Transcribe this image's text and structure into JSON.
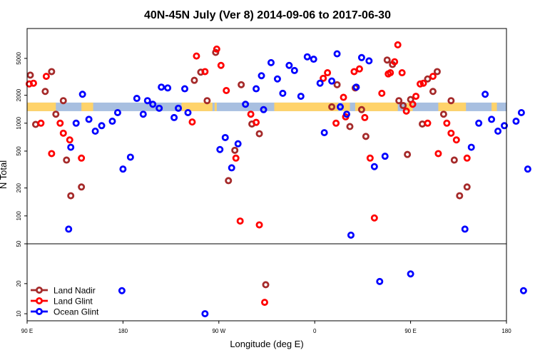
{
  "chart_data": {
    "type": "scatter",
    "title": "40N-45N July (Ver 8)   2014-09-06 to 2017-06-30",
    "xlabel": "Longitude (deg E)",
    "ylabel": "N Total",
    "x_ticks": [
      {
        "value": 90,
        "label": "90 E"
      },
      {
        "value": 180,
        "label": "180"
      },
      {
        "value": 270,
        "label": "90 W"
      },
      {
        "value": 360,
        "label": "0"
      },
      {
        "value": 450,
        "label": "90 E"
      },
      {
        "value": 540,
        "label": "180"
      }
    ],
    "upper_panel": {
      "y_scale": "log",
      "ylim": [
        50,
        10500
      ],
      "y_ticks": [
        {
          "value": 50,
          "label": "50"
        },
        {
          "value": 100,
          "label": "100"
        },
        {
          "value": 200,
          "label": "200"
        },
        {
          "value": 500,
          "label": "500"
        },
        {
          "value": 1000,
          "label": "1000"
        },
        {
          "value": 2000,
          "label": "2000"
        },
        {
          "value": 5000,
          "label": "5000"
        }
      ]
    },
    "lower_panel": {
      "y_scale": "log",
      "ylim": [
        8.5,
        50
      ],
      "y_ticks": [
        {
          "value": 10,
          "label": "10"
        },
        {
          "value": 20,
          "label": "20"
        }
      ]
    },
    "xlim": [
      90,
      540
    ],
    "legend_position": "bottom-left",
    "land_mask_y": 1500,
    "land_mask_color_land": "#FFD36A",
    "land_mask_color_ocean": "#A8BFE0",
    "land_mask_land_ranges": [
      [
        90,
        117
      ],
      [
        141,
        152
      ],
      [
        235,
        264
      ],
      [
        266,
        268
      ],
      [
        322,
        382
      ],
      [
        386,
        393
      ],
      [
        398,
        438
      ],
      [
        446,
        452
      ],
      [
        476,
        502
      ],
      [
        526,
        531
      ]
    ],
    "series": [
      {
        "name": "Land Nadir",
        "color": "#A52A2A",
        "points": [
          [
            93,
            3300
          ],
          [
            98,
            970
          ],
          [
            107,
            2200
          ],
          [
            113,
            3600
          ],
          [
            117,
            1250
          ],
          [
            124,
            1750
          ],
          [
            127,
            400
          ],
          [
            131,
            165
          ],
          [
            141,
            205
          ],
          [
            247,
            2900
          ],
          [
            253,
            3550
          ],
          [
            259,
            1750
          ],
          [
            267,
            5800
          ],
          [
            279,
            240
          ],
          [
            285,
            510
          ],
          [
            291,
            2600
          ],
          [
            301,
            980
          ],
          [
            308,
            770
          ],
          [
            314,
            19.5
          ],
          [
            376,
            1500
          ],
          [
            381,
            2600
          ],
          [
            393,
            920
          ],
          [
            398,
            2400
          ],
          [
            404,
            1400
          ],
          [
            408,
            720
          ],
          [
            428,
            4800
          ],
          [
            433,
            4300
          ],
          [
            439,
            1750
          ],
          [
            443,
            1550
          ],
          [
            447,
            460
          ],
          [
            450,
            1800
          ],
          [
            461,
            980
          ],
          [
            466,
            3000
          ],
          [
            471,
            2200
          ],
          [
            475,
            3600
          ],
          [
            481,
            1250
          ],
          [
            488,
            1750
          ],
          [
            491,
            400
          ],
          [
            496,
            165
          ],
          [
            503,
            205
          ]
        ]
      },
      {
        "name": "Land Glint",
        "color": "#FF0000",
        "points": [
          [
            92,
            2650
          ],
          [
            96,
            2700
          ],
          [
            103,
            1000
          ],
          [
            108,
            3200
          ],
          [
            113,
            470
          ],
          [
            121,
            1000
          ],
          [
            124,
            780
          ],
          [
            130,
            660
          ],
          [
            141,
            420
          ],
          [
            245,
            1030
          ],
          [
            249,
            5300
          ],
          [
            257,
            3600
          ],
          [
            268,
            6300
          ],
          [
            272,
            4200
          ],
          [
            277,
            2250
          ],
          [
            286,
            420
          ],
          [
            290,
            88
          ],
          [
            300,
            1250
          ],
          [
            305,
            1020
          ],
          [
            308,
            80
          ],
          [
            313,
            13
          ],
          [
            368,
            3050
          ],
          [
            372,
            3500
          ],
          [
            380,
            1000
          ],
          [
            387,
            1900
          ],
          [
            389,
            1170
          ],
          [
            397,
            3600
          ],
          [
            402,
            3850
          ],
          [
            407,
            1150
          ],
          [
            412,
            420
          ],
          [
            416,
            95
          ],
          [
            423,
            2100
          ],
          [
            429,
            3400
          ],
          [
            431,
            3500
          ],
          [
            435,
            4600
          ],
          [
            438,
            7000
          ],
          [
            442,
            3500
          ],
          [
            446,
            1350
          ],
          [
            452,
            1600
          ],
          [
            455,
            1950
          ],
          [
            459,
            2650
          ],
          [
            462,
            2700
          ],
          [
            466,
            1000
          ],
          [
            471,
            3200
          ],
          [
            476,
            470
          ],
          [
            484,
            1000
          ],
          [
            488,
            780
          ],
          [
            493,
            660
          ],
          [
            503,
            420
          ]
        ]
      },
      {
        "name": "Ocean Glint",
        "color": "#0000FF",
        "points": [
          [
            129,
            72
          ],
          [
            131,
            550
          ],
          [
            136,
            1000
          ],
          [
            142,
            2050
          ],
          [
            148,
            1100
          ],
          [
            154,
            820
          ],
          [
            160,
            940
          ],
          [
            170,
            1050
          ],
          [
            175,
            1300
          ],
          [
            179,
            17
          ],
          [
            180,
            320
          ],
          [
            187,
            430
          ],
          [
            193,
            1850
          ],
          [
            199,
            1250
          ],
          [
            203,
            1750
          ],
          [
            208,
            1600
          ],
          [
            214,
            1450
          ],
          [
            216,
            2450
          ],
          [
            222,
            2400
          ],
          [
            228,
            1150
          ],
          [
            232,
            1450
          ],
          [
            238,
            2350
          ],
          [
            241,
            1300
          ],
          [
            257,
            10
          ],
          [
            271,
            520
          ],
          [
            276,
            700
          ],
          [
            282,
            330
          ],
          [
            288,
            600
          ],
          [
            295,
            1600
          ],
          [
            305,
            2350
          ],
          [
            310,
            3250
          ],
          [
            312,
            1400
          ],
          [
            319,
            4500
          ],
          [
            325,
            3000
          ],
          [
            330,
            2100
          ],
          [
            336,
            4200
          ],
          [
            341,
            3700
          ],
          [
            347,
            1950
          ],
          [
            353,
            5200
          ],
          [
            359,
            4900
          ],
          [
            365,
            2700
          ],
          [
            369,
            790
          ],
          [
            376,
            2850
          ],
          [
            381,
            5600
          ],
          [
            384,
            1500
          ],
          [
            390,
            1250
          ],
          [
            394,
            62
          ],
          [
            399,
            2450
          ],
          [
            404,
            5100
          ],
          [
            411,
            4700
          ],
          [
            416,
            340
          ],
          [
            421,
            21
          ],
          [
            426,
            440
          ],
          [
            450,
            25
          ],
          [
            501,
            72
          ],
          [
            507,
            550
          ],
          [
            514,
            1000
          ],
          [
            520,
            2050
          ],
          [
            526,
            1100
          ],
          [
            532,
            820
          ],
          [
            538,
            940
          ],
          [
            549,
            1050
          ],
          [
            556,
            17
          ],
          [
            554,
            1300
          ],
          [
            560,
            320
          ]
        ]
      }
    ]
  }
}
